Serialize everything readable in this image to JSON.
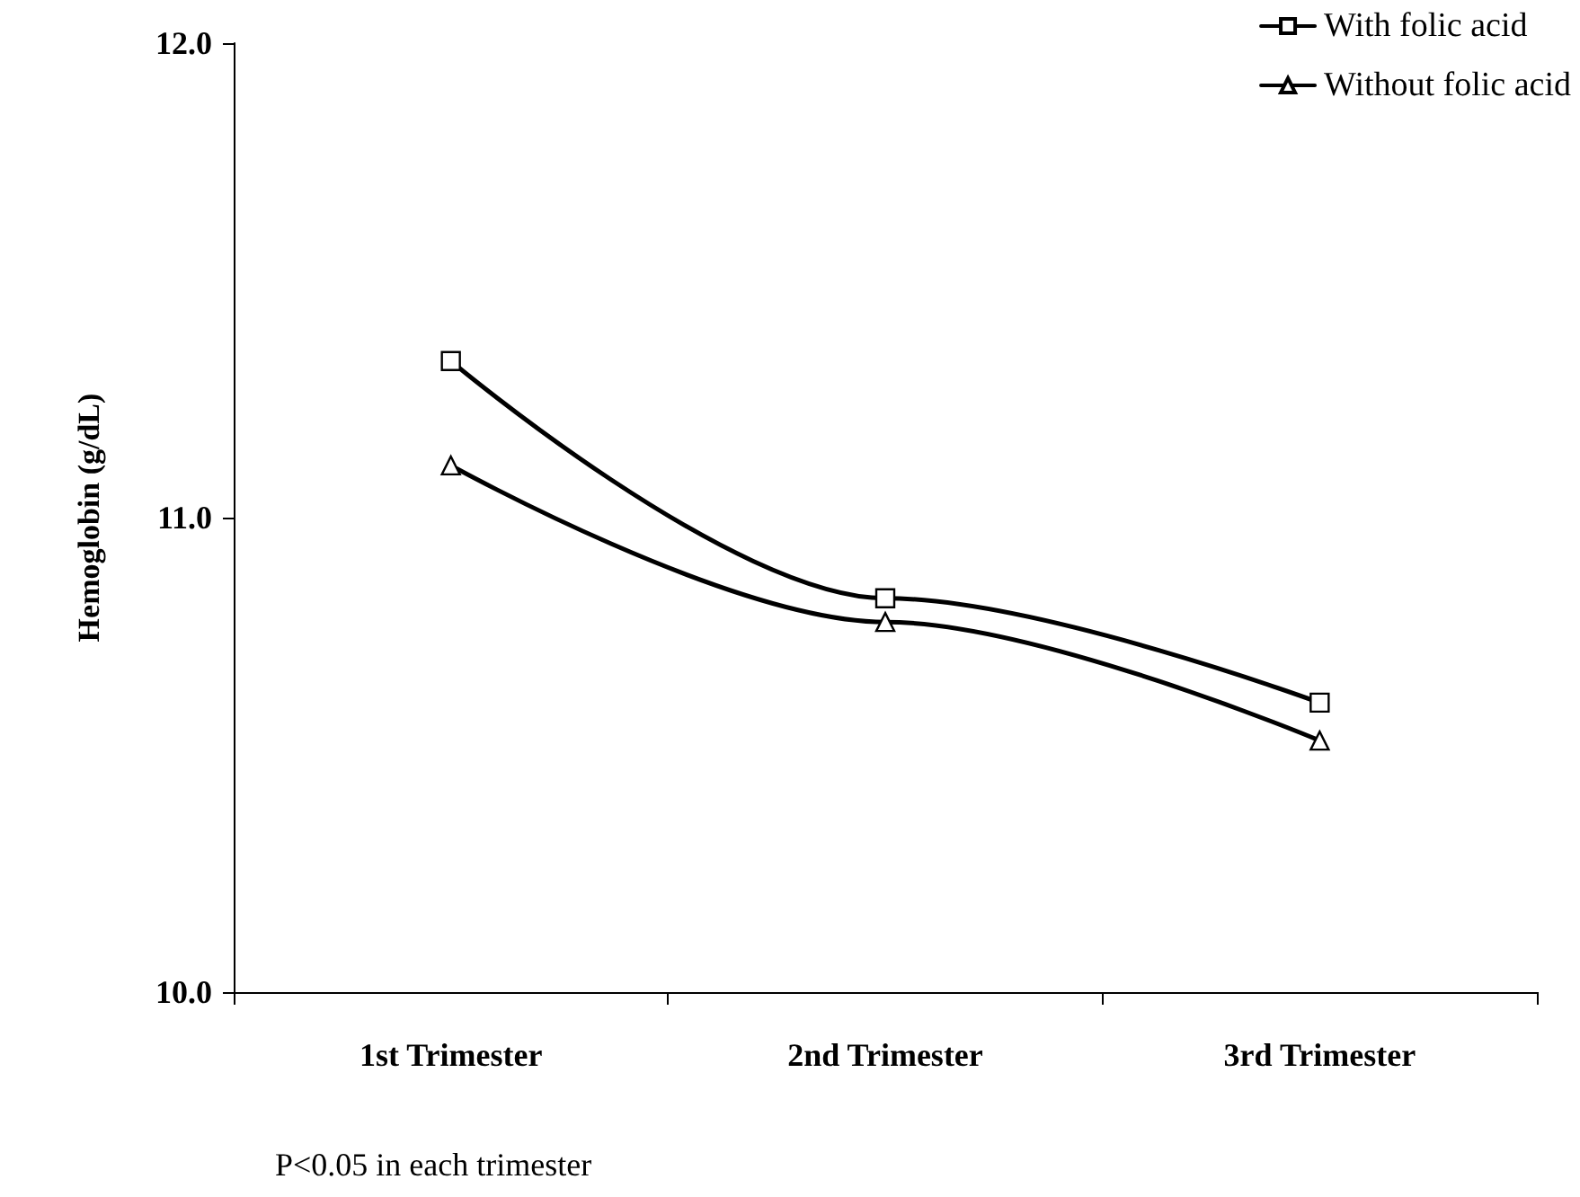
{
  "chart_data": {
    "type": "line",
    "ylabel": "Hemoglobin (g/dL)",
    "categories": [
      "1st Trimester",
      "2nd Trimester",
      "3rd Trimester"
    ],
    "series": [
      {
        "name": "With folic acid",
        "color": "#000000",
        "marker": "square",
        "values": [
          11.33,
          10.83,
          10.61
        ]
      },
      {
        "name": "Without folic acid",
        "color": "#000000",
        "marker": "triangle",
        "values": [
          11.11,
          10.78,
          10.53
        ]
      }
    ],
    "ylim": [
      10,
      12
    ],
    "yticks": [
      {
        "value": 10,
        "label": "10.0"
      },
      {
        "value": 11,
        "label": "11.0"
      },
      {
        "value": 12,
        "label": "12.0"
      }
    ],
    "grid": false,
    "legend": "top right",
    "line_style": "solid",
    "annotations": [
      "P<0.05 in each trimester"
    ]
  }
}
